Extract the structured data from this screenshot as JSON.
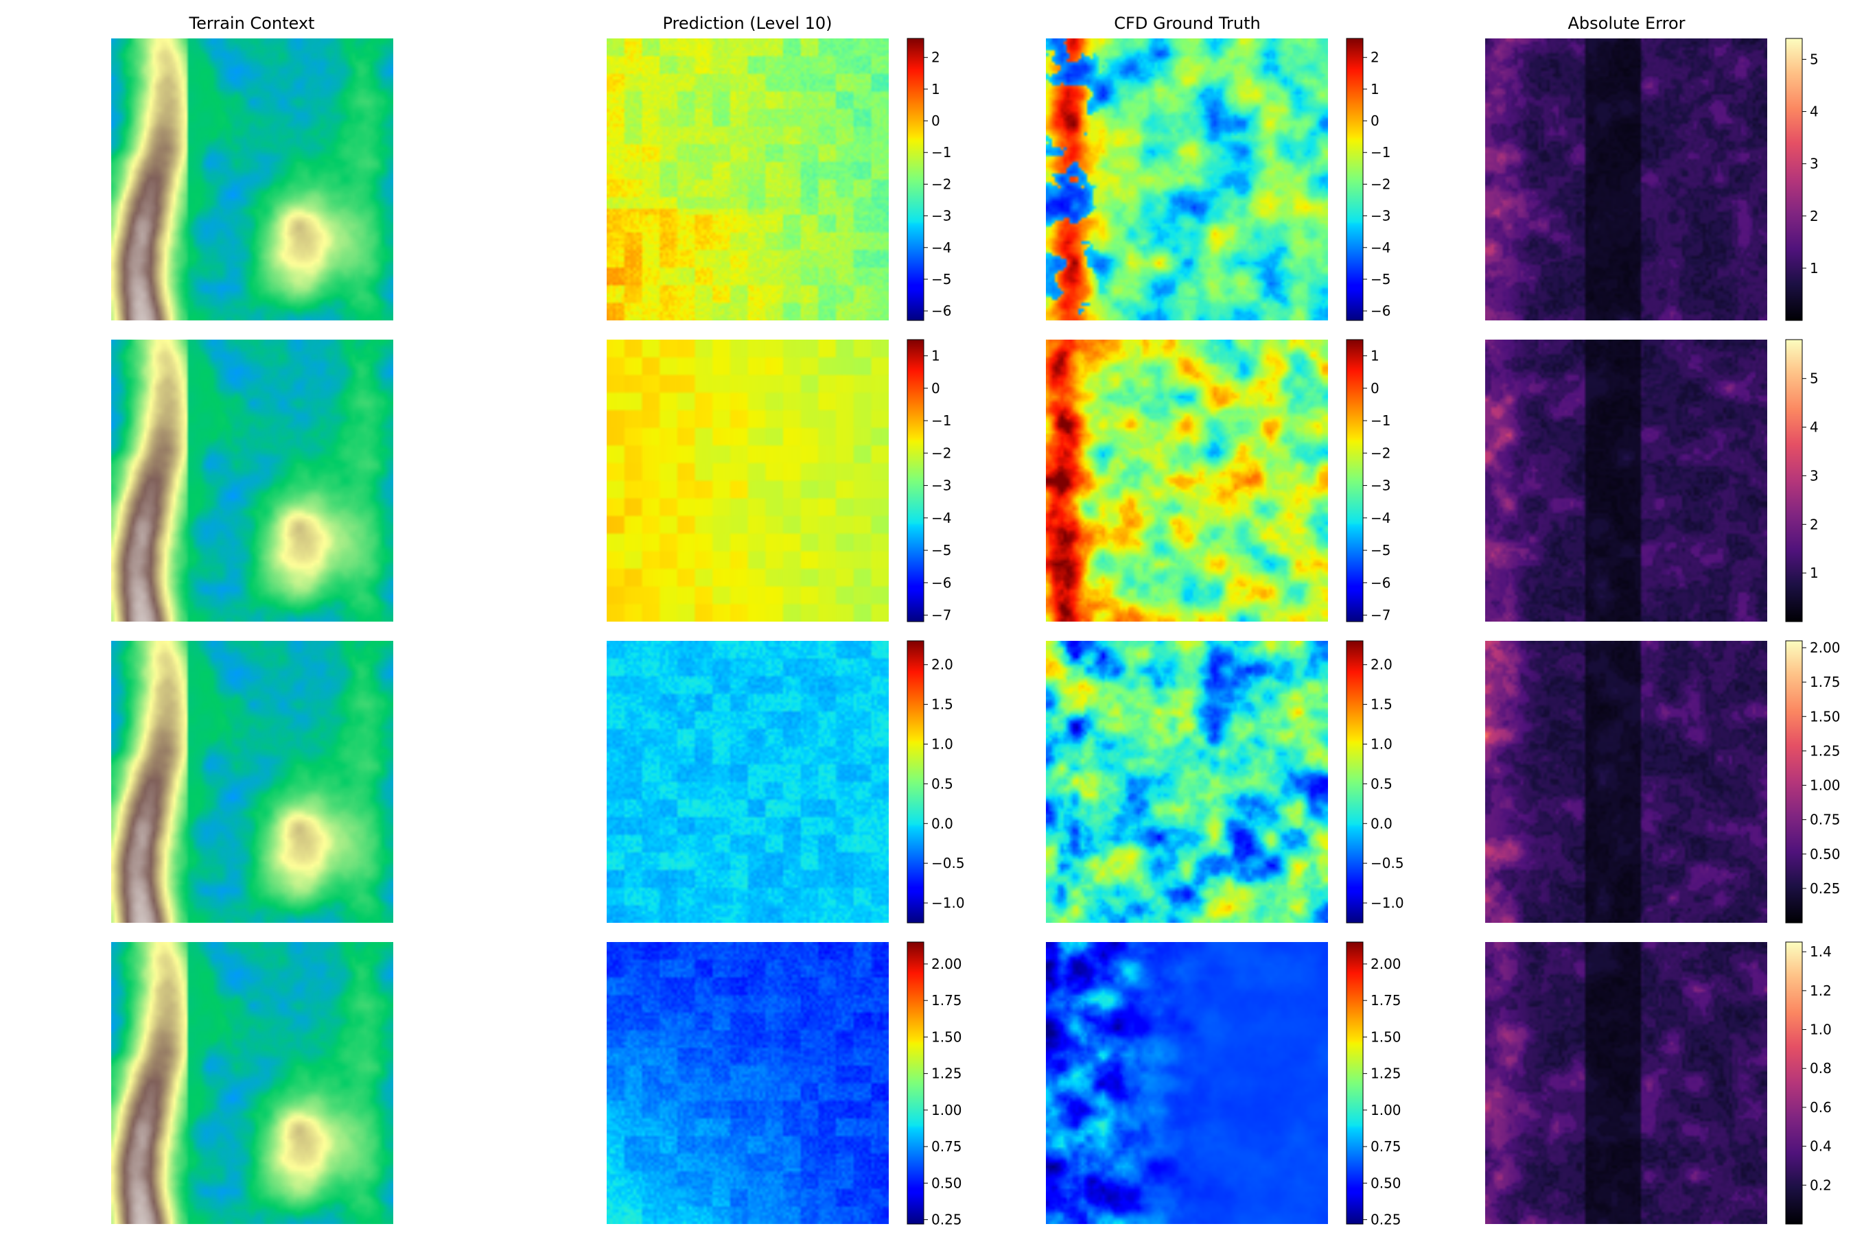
{
  "chart_data": {
    "type": "heatmap",
    "grid": {
      "rows": 4,
      "cols": 4
    },
    "column_titles": [
      "Terrain Context",
      "Prediction (Level 10)",
      "CFD Ground Truth",
      "Absolute Error"
    ],
    "colormaps": {
      "terrain": "terrain",
      "field": "jet",
      "error": "magma"
    },
    "rows": [
      {
        "field_range": [
          -6.3,
          2.6
        ],
        "field_ticks": [
          "2",
          "1",
          "0",
          "−1",
          "−2",
          "−3",
          "−4",
          "−5",
          "−6"
        ],
        "field_tick_values": [
          2,
          1,
          0,
          -1,
          -2,
          -3,
          -4,
          -5,
          -6
        ],
        "error_range": [
          0.0,
          5.4
        ],
        "error_ticks": [
          "5",
          "4",
          "3",
          "2",
          "1"
        ],
        "error_tick_values": [
          5,
          4,
          3,
          2,
          1
        ]
      },
      {
        "field_range": [
          -7.2,
          1.5
        ],
        "field_ticks": [
          "1",
          "0",
          "−1",
          "−2",
          "−3",
          "−4",
          "−5",
          "−6",
          "−7"
        ],
        "field_tick_values": [
          1,
          0,
          -1,
          -2,
          -3,
          -4,
          -5,
          -6,
          -7
        ],
        "error_range": [
          0.0,
          5.8
        ],
        "error_ticks": [
          "5",
          "4",
          "3",
          "2",
          "1"
        ],
        "error_tick_values": [
          5,
          4,
          3,
          2,
          1
        ]
      },
      {
        "field_range": [
          -1.25,
          2.3
        ],
        "field_ticks": [
          "2.0",
          "1.5",
          "1.0",
          "0.5",
          "0.0",
          "−0.5",
          "−1.0"
        ],
        "field_tick_values": [
          2.0,
          1.5,
          1.0,
          0.5,
          0.0,
          -0.5,
          -1.0
        ],
        "error_range": [
          0.0,
          2.05
        ],
        "error_ticks": [
          "2.00",
          "1.75",
          "1.50",
          "1.25",
          "1.00",
          "0.75",
          "0.50",
          "0.25"
        ],
        "error_tick_values": [
          2.0,
          1.75,
          1.5,
          1.25,
          1.0,
          0.75,
          0.5,
          0.25
        ]
      },
      {
        "field_range": [
          0.22,
          2.15
        ],
        "field_ticks": [
          "2.00",
          "1.75",
          "1.50",
          "1.25",
          "1.00",
          "0.75",
          "0.50",
          "0.25"
        ],
        "field_tick_values": [
          2.0,
          1.75,
          1.5,
          1.25,
          1.0,
          0.75,
          0.5,
          0.25
        ],
        "error_range": [
          0.0,
          1.45
        ],
        "error_ticks": [
          "1.4",
          "1.2",
          "1.0",
          "0.8",
          "0.6",
          "0.4",
          "0.2"
        ],
        "error_tick_values": [
          1.4,
          1.2,
          1.0,
          0.8,
          0.6,
          0.4,
          0.2
        ]
      }
    ]
  }
}
